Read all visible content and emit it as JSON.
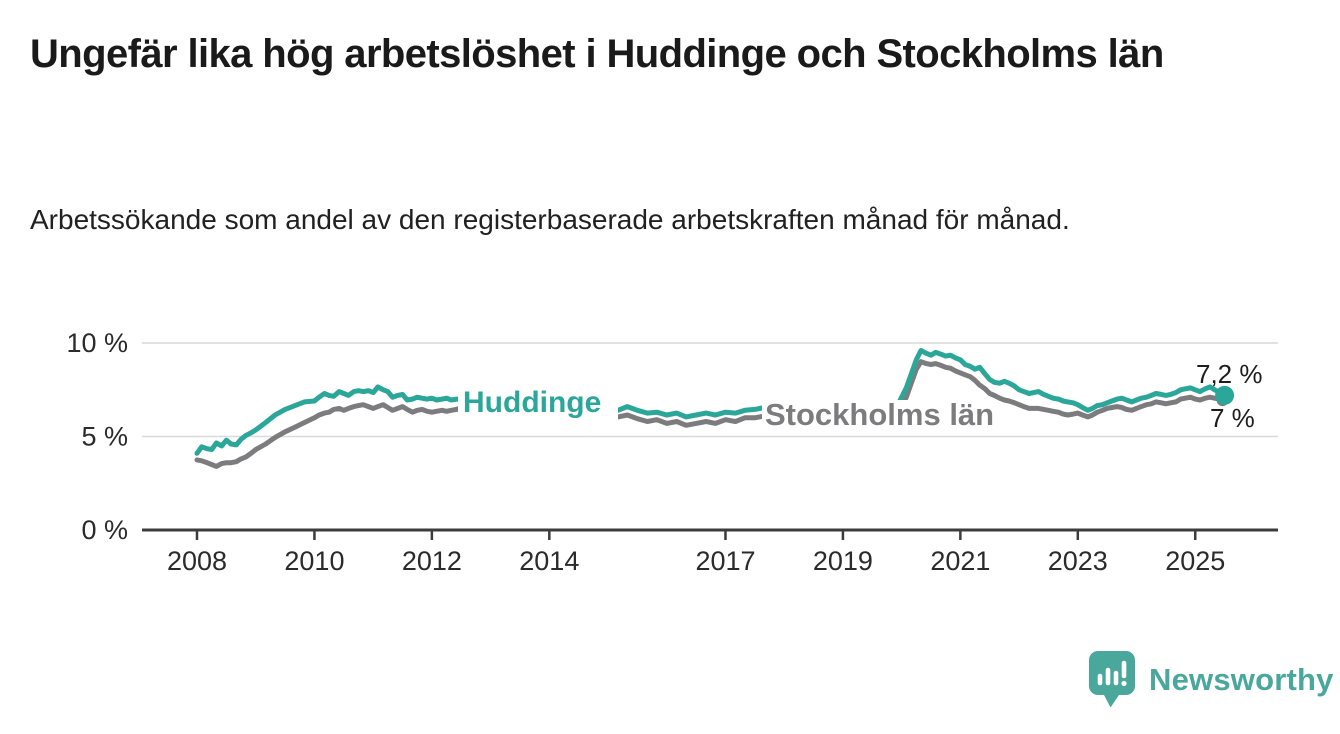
{
  "header": {
    "title": "Ungefär lika hög arbetslöshet i Huddinge och Stockholms län",
    "subtitle": "Arbetssökande som andel av den registerbaserade arbetskraften månad för månad."
  },
  "chart_data": {
    "type": "line",
    "title": "",
    "xlabel": "",
    "ylabel": "",
    "x_unit": "decimal year (monthly data)",
    "y_unit": "percent of registered labour force",
    "xlim": [
      2007.05,
      2026.4
    ],
    "ylim": [
      0,
      11
    ],
    "grid": "horizontal",
    "x_ticks": [
      2008,
      2010,
      2012,
      2014,
      2017,
      2019,
      2021,
      2023,
      2025
    ],
    "y_ticks": [
      {
        "value": 0,
        "label": "0 %"
      },
      {
        "value": 5,
        "label": "5 %"
      },
      {
        "value": 10,
        "label": "10 %"
      }
    ],
    "series": [
      {
        "name": "Huddinge",
        "inline_label": "Huddinge",
        "end_label": "7,2 %",
        "end_value": 7.2,
        "color": "#2ba79a",
        "points": [
          [
            2008.0,
            4.1
          ],
          [
            2008.08,
            4.45
          ],
          [
            2008.17,
            4.35
          ],
          [
            2008.25,
            4.3
          ],
          [
            2008.33,
            4.65
          ],
          [
            2008.42,
            4.5
          ],
          [
            2008.5,
            4.8
          ],
          [
            2008.58,
            4.6
          ],
          [
            2008.67,
            4.55
          ],
          [
            2008.75,
            4.85
          ],
          [
            2008.83,
            5.05
          ],
          [
            2008.92,
            5.2
          ],
          [
            2009.0,
            5.35
          ],
          [
            2009.17,
            5.75
          ],
          [
            2009.33,
            6.15
          ],
          [
            2009.5,
            6.45
          ],
          [
            2009.67,
            6.65
          ],
          [
            2009.83,
            6.85
          ],
          [
            2010.0,
            6.9
          ],
          [
            2010.08,
            7.1
          ],
          [
            2010.17,
            7.3
          ],
          [
            2010.25,
            7.2
          ],
          [
            2010.33,
            7.15
          ],
          [
            2010.42,
            7.4
          ],
          [
            2010.5,
            7.3
          ],
          [
            2010.58,
            7.2
          ],
          [
            2010.67,
            7.4
          ],
          [
            2010.75,
            7.45
          ],
          [
            2010.83,
            7.4
          ],
          [
            2010.92,
            7.45
          ],
          [
            2011.0,
            7.35
          ],
          [
            2011.08,
            7.65
          ],
          [
            2011.17,
            7.5
          ],
          [
            2011.25,
            7.4
          ],
          [
            2011.33,
            7.1
          ],
          [
            2011.42,
            7.2
          ],
          [
            2011.5,
            7.25
          ],
          [
            2011.58,
            6.95
          ],
          [
            2011.67,
            7.0
          ],
          [
            2011.75,
            7.1
          ],
          [
            2011.83,
            7.05
          ],
          [
            2011.92,
            7.0
          ],
          [
            2012.0,
            7.05
          ],
          [
            2012.08,
            6.95
          ],
          [
            2012.17,
            7.0
          ],
          [
            2012.25,
            7.05
          ],
          [
            2012.33,
            6.95
          ],
          [
            2012.42,
            7.0
          ],
          [
            2012.5,
            7.0
          ],
          [
            2013.0,
            6.9
          ],
          [
            2013.5,
            6.75
          ],
          [
            2014.0,
            6.6
          ],
          [
            2014.5,
            6.5
          ],
          [
            2015.0,
            6.4
          ],
          [
            2015.17,
            6.4
          ],
          [
            2015.33,
            6.6
          ],
          [
            2015.5,
            6.4
          ],
          [
            2015.67,
            6.25
          ],
          [
            2015.83,
            6.3
          ],
          [
            2016.0,
            6.15
          ],
          [
            2016.17,
            6.25
          ],
          [
            2016.33,
            6.05
          ],
          [
            2016.5,
            6.15
          ],
          [
            2016.67,
            6.25
          ],
          [
            2016.83,
            6.15
          ],
          [
            2017.0,
            6.3
          ],
          [
            2017.17,
            6.25
          ],
          [
            2017.33,
            6.4
          ],
          [
            2017.5,
            6.45
          ],
          [
            2017.67,
            6.55
          ],
          [
            2017.83,
            6.6
          ],
          [
            2018.25,
            6.45
          ],
          [
            2018.75,
            6.3
          ],
          [
            2019.25,
            6.2
          ],
          [
            2019.75,
            6.3
          ],
          [
            2019.92,
            6.6
          ],
          [
            2020.08,
            7.6
          ],
          [
            2020.25,
            9.1
          ],
          [
            2020.33,
            9.6
          ],
          [
            2020.42,
            9.45
          ],
          [
            2020.5,
            9.35
          ],
          [
            2020.58,
            9.5
          ],
          [
            2020.67,
            9.4
          ],
          [
            2020.75,
            9.3
          ],
          [
            2020.83,
            9.35
          ],
          [
            2020.92,
            9.2
          ],
          [
            2021.0,
            9.1
          ],
          [
            2021.08,
            8.85
          ],
          [
            2021.17,
            8.75
          ],
          [
            2021.25,
            8.6
          ],
          [
            2021.33,
            8.7
          ],
          [
            2021.42,
            8.35
          ],
          [
            2021.5,
            8.05
          ],
          [
            2021.58,
            7.9
          ],
          [
            2021.67,
            7.85
          ],
          [
            2021.75,
            7.95
          ],
          [
            2021.83,
            7.85
          ],
          [
            2021.92,
            7.7
          ],
          [
            2022.0,
            7.5
          ],
          [
            2022.08,
            7.4
          ],
          [
            2022.17,
            7.3
          ],
          [
            2022.25,
            7.35
          ],
          [
            2022.33,
            7.4
          ],
          [
            2022.42,
            7.25
          ],
          [
            2022.5,
            7.15
          ],
          [
            2022.58,
            7.05
          ],
          [
            2022.67,
            7.0
          ],
          [
            2022.75,
            6.9
          ],
          [
            2022.83,
            6.85
          ],
          [
            2022.92,
            6.8
          ],
          [
            2023.0,
            6.7
          ],
          [
            2023.08,
            6.55
          ],
          [
            2023.17,
            6.4
          ],
          [
            2023.25,
            6.5
          ],
          [
            2023.33,
            6.65
          ],
          [
            2023.42,
            6.7
          ],
          [
            2023.5,
            6.8
          ],
          [
            2023.58,
            6.9
          ],
          [
            2023.67,
            7.0
          ],
          [
            2023.75,
            7.05
          ],
          [
            2023.83,
            6.95
          ],
          [
            2023.92,
            6.85
          ],
          [
            2024.0,
            6.95
          ],
          [
            2024.08,
            7.05
          ],
          [
            2024.17,
            7.1
          ],
          [
            2024.25,
            7.2
          ],
          [
            2024.33,
            7.3
          ],
          [
            2024.42,
            7.25
          ],
          [
            2024.5,
            7.2
          ],
          [
            2024.58,
            7.25
          ],
          [
            2024.67,
            7.35
          ],
          [
            2024.75,
            7.5
          ],
          [
            2024.83,
            7.55
          ],
          [
            2024.92,
            7.6
          ],
          [
            2025.0,
            7.5
          ],
          [
            2025.08,
            7.4
          ],
          [
            2025.17,
            7.55
          ],
          [
            2025.25,
            7.65
          ],
          [
            2025.33,
            7.5
          ],
          [
            2025.42,
            7.35
          ],
          [
            2025.5,
            7.2
          ]
        ]
      },
      {
        "name": "Stockholms län",
        "inline_label": "Stockholms län",
        "end_label": "7 %",
        "end_value": 7.0,
        "color": "#7c7c7f",
        "points": [
          [
            2008.0,
            3.75
          ],
          [
            2008.08,
            3.7
          ],
          [
            2008.17,
            3.6
          ],
          [
            2008.25,
            3.5
          ],
          [
            2008.33,
            3.4
          ],
          [
            2008.42,
            3.55
          ],
          [
            2008.5,
            3.6
          ],
          [
            2008.58,
            3.6
          ],
          [
            2008.67,
            3.65
          ],
          [
            2008.75,
            3.8
          ],
          [
            2008.83,
            3.9
          ],
          [
            2008.92,
            4.1
          ],
          [
            2009.0,
            4.3
          ],
          [
            2009.17,
            4.6
          ],
          [
            2009.33,
            4.95
          ],
          [
            2009.5,
            5.25
          ],
          [
            2009.67,
            5.5
          ],
          [
            2009.83,
            5.75
          ],
          [
            2010.0,
            6.0
          ],
          [
            2010.08,
            6.15
          ],
          [
            2010.17,
            6.25
          ],
          [
            2010.25,
            6.3
          ],
          [
            2010.33,
            6.45
          ],
          [
            2010.42,
            6.5
          ],
          [
            2010.5,
            6.4
          ],
          [
            2010.58,
            6.5
          ],
          [
            2010.67,
            6.6
          ],
          [
            2010.75,
            6.65
          ],
          [
            2010.83,
            6.7
          ],
          [
            2010.92,
            6.6
          ],
          [
            2011.0,
            6.5
          ],
          [
            2011.08,
            6.6
          ],
          [
            2011.17,
            6.7
          ],
          [
            2011.25,
            6.55
          ],
          [
            2011.33,
            6.4
          ],
          [
            2011.42,
            6.5
          ],
          [
            2011.5,
            6.6
          ],
          [
            2011.58,
            6.45
          ],
          [
            2011.67,
            6.3
          ],
          [
            2011.75,
            6.4
          ],
          [
            2011.83,
            6.45
          ],
          [
            2011.92,
            6.35
          ],
          [
            2012.0,
            6.3
          ],
          [
            2012.08,
            6.35
          ],
          [
            2012.17,
            6.4
          ],
          [
            2012.25,
            6.35
          ],
          [
            2012.33,
            6.4
          ],
          [
            2012.42,
            6.45
          ],
          [
            2012.5,
            6.55
          ],
          [
            2013.0,
            6.45
          ],
          [
            2013.5,
            6.35
          ],
          [
            2014.0,
            6.2
          ],
          [
            2014.5,
            6.1
          ],
          [
            2015.0,
            6.05
          ],
          [
            2015.17,
            6.05
          ],
          [
            2015.33,
            6.15
          ],
          [
            2015.5,
            5.95
          ],
          [
            2015.67,
            5.8
          ],
          [
            2015.83,
            5.9
          ],
          [
            2016.0,
            5.7
          ],
          [
            2016.17,
            5.8
          ],
          [
            2016.33,
            5.6
          ],
          [
            2016.5,
            5.7
          ],
          [
            2016.67,
            5.8
          ],
          [
            2016.83,
            5.7
          ],
          [
            2017.0,
            5.9
          ],
          [
            2017.17,
            5.8
          ],
          [
            2017.33,
            6.0
          ],
          [
            2017.5,
            6.0
          ],
          [
            2017.67,
            6.1
          ],
          [
            2017.83,
            6.15
          ],
          [
            2018.25,
            6.0
          ],
          [
            2018.75,
            5.85
          ],
          [
            2019.25,
            5.75
          ],
          [
            2019.75,
            5.85
          ],
          [
            2019.92,
            6.1
          ],
          [
            2020.08,
            7.1
          ],
          [
            2020.25,
            8.6
          ],
          [
            2020.33,
            9.0
          ],
          [
            2020.42,
            8.9
          ],
          [
            2020.5,
            8.85
          ],
          [
            2020.58,
            8.9
          ],
          [
            2020.67,
            8.8
          ],
          [
            2020.75,
            8.7
          ],
          [
            2020.83,
            8.65
          ],
          [
            2020.92,
            8.5
          ],
          [
            2021.0,
            8.4
          ],
          [
            2021.08,
            8.3
          ],
          [
            2021.17,
            8.2
          ],
          [
            2021.25,
            8.0
          ],
          [
            2021.33,
            7.75
          ],
          [
            2021.42,
            7.55
          ],
          [
            2021.5,
            7.3
          ],
          [
            2021.58,
            7.2
          ],
          [
            2021.67,
            7.05
          ],
          [
            2021.75,
            6.95
          ],
          [
            2021.83,
            6.9
          ],
          [
            2021.92,
            6.8
          ],
          [
            2022.0,
            6.7
          ],
          [
            2022.08,
            6.6
          ],
          [
            2022.17,
            6.5
          ],
          [
            2022.25,
            6.5
          ],
          [
            2022.33,
            6.5
          ],
          [
            2022.42,
            6.45
          ],
          [
            2022.5,
            6.4
          ],
          [
            2022.58,
            6.35
          ],
          [
            2022.67,
            6.3
          ],
          [
            2022.75,
            6.2
          ],
          [
            2022.83,
            6.15
          ],
          [
            2022.92,
            6.2
          ],
          [
            2023.0,
            6.25
          ],
          [
            2023.08,
            6.15
          ],
          [
            2023.17,
            6.05
          ],
          [
            2023.25,
            6.15
          ],
          [
            2023.33,
            6.3
          ],
          [
            2023.42,
            6.4
          ],
          [
            2023.5,
            6.5
          ],
          [
            2023.58,
            6.55
          ],
          [
            2023.67,
            6.6
          ],
          [
            2023.75,
            6.55
          ],
          [
            2023.83,
            6.45
          ],
          [
            2023.92,
            6.4
          ],
          [
            2024.0,
            6.5
          ],
          [
            2024.08,
            6.6
          ],
          [
            2024.17,
            6.7
          ],
          [
            2024.25,
            6.75
          ],
          [
            2024.33,
            6.85
          ],
          [
            2024.42,
            6.8
          ],
          [
            2024.5,
            6.75
          ],
          [
            2024.58,
            6.8
          ],
          [
            2024.67,
            6.85
          ],
          [
            2024.75,
            7.0
          ],
          [
            2024.83,
            7.05
          ],
          [
            2024.92,
            7.1
          ],
          [
            2025.0,
            7.0
          ],
          [
            2025.08,
            6.95
          ],
          [
            2025.17,
            7.05
          ],
          [
            2025.25,
            7.1
          ],
          [
            2025.33,
            7.05
          ],
          [
            2025.42,
            7.0
          ],
          [
            2025.5,
            7.0
          ]
        ]
      }
    ],
    "colors": {
      "huddinge_teal": "#2ba79a",
      "stockholm_gray": "#7c7c7f",
      "gridline": "#d9d9d9",
      "axis": "#3c3c3c",
      "tick_label": "#2b2b2b",
      "annotation": "#1d1d1b"
    }
  },
  "branding": {
    "logo_text": "Newsworthy",
    "logo_icon": "speech-bubble-bar-chart-icon",
    "logo_color": "#4aa79b"
  }
}
